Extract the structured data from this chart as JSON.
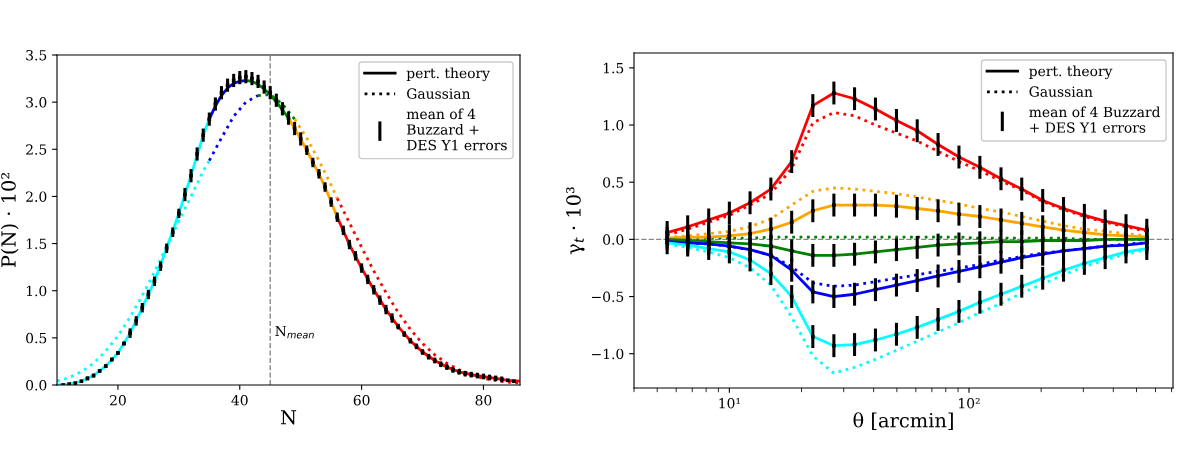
{
  "chart_data": [
    {
      "type": "line",
      "xlabel": "N",
      "ylabel": "P(N) · 10²",
      "xlim": [
        10,
        86
      ],
      "ylim": [
        0,
        3.5
      ],
      "xticks": [
        20,
        40,
        60,
        80
      ],
      "yticks": [
        {
          "value": 0,
          "label": "0.0"
        },
        {
          "value": 0.5,
          "label": "0.5"
        },
        {
          "value": 1,
          "label": "1.0"
        },
        {
          "value": 1.5,
          "label": "1.5"
        },
        {
          "value": 2,
          "label": "2.0"
        },
        {
          "value": 2.5,
          "label": "2.5"
        },
        {
          "value": 3,
          "label": "3.0"
        },
        {
          "value": 3.5,
          "label": "3.5"
        }
      ],
      "grid": false,
      "legend": "top right",
      "ref_lines": [
        {
          "axis": "x",
          "value": 45,
          "label": "N$_{mean}$",
          "color": "#888888",
          "line_style": "dashed"
        }
      ],
      "series": [
        {
          "name": "pert. theory",
          "color": "#000000",
          "line_style": "solid"
        },
        {
          "name": "Gaussian",
          "color": "#000000",
          "line_style": "dotted"
        },
        {
          "color": "#00ffff",
          "line_style": "dotted",
          "x": [
            10,
            12,
            14,
            16,
            18,
            20,
            22,
            24,
            26,
            28,
            30,
            32,
            34,
            35
          ],
          "values": [
            0.04,
            0.08,
            0.14,
            0.23,
            0.36,
            0.52,
            0.72,
            0.95,
            1.2,
            1.47,
            1.74,
            2.0,
            2.27,
            2.38
          ]
        },
        {
          "color": "#0000ff",
          "line_style": "dotted",
          "x": [
            35,
            37,
            39,
            41,
            43
          ],
          "values": [
            2.38,
            2.62,
            2.85,
            3.0,
            3.07
          ]
        },
        {
          "color": "#008000",
          "line_style": "dotted",
          "x": [
            43,
            45,
            47,
            49
          ],
          "values": [
            3.07,
            3.08,
            2.98,
            2.82
          ]
        },
        {
          "color": "#ffa500",
          "line_style": "dotted",
          "x": [
            49,
            51,
            53,
            55,
            56
          ],
          "values": [
            2.82,
            2.62,
            2.38,
            2.12,
            1.98
          ]
        },
        {
          "color": "#ff0000",
          "line_style": "dotted",
          "x": [
            56,
            58,
            60,
            62,
            64,
            66,
            68,
            70,
            72,
            74,
            76,
            78,
            80,
            82,
            84,
            86
          ],
          "values": [
            1.98,
            1.72,
            1.46,
            1.21,
            0.98,
            0.77,
            0.59,
            0.44,
            0.32,
            0.23,
            0.16,
            0.11,
            0.07,
            0.05,
            0.03,
            0.02
          ]
        },
        {
          "color": "#00ffff",
          "line_style": "solid",
          "x": [
            10,
            12,
            14,
            16,
            18,
            20,
            22,
            24,
            26,
            28,
            30,
            32,
            34,
            35
          ],
          "values": [
            0.0,
            0.01,
            0.04,
            0.1,
            0.2,
            0.34,
            0.55,
            0.82,
            1.1,
            1.45,
            1.82,
            2.22,
            2.65,
            2.82
          ]
        },
        {
          "color": "#0000ff",
          "line_style": "solid",
          "x": [
            35,
            36,
            37,
            38,
            39,
            40,
            41
          ],
          "values": [
            2.82,
            2.96,
            3.07,
            3.15,
            3.2,
            3.22,
            3.23
          ]
        },
        {
          "color": "#008000",
          "line_style": "solid",
          "x": [
            41,
            42,
            43,
            44,
            45,
            46,
            47,
            48
          ],
          "values": [
            3.23,
            3.22,
            3.19,
            3.14,
            3.08,
            3.0,
            2.92,
            2.83
          ]
        },
        {
          "color": "#ffa500",
          "line_style": "solid",
          "x": [
            48,
            49,
            50,
            51,
            52,
            53,
            54,
            55,
            56
          ],
          "values": [
            2.83,
            2.72,
            2.61,
            2.49,
            2.36,
            2.24,
            2.1,
            1.94,
            1.78
          ]
        },
        {
          "color": "#ff0000",
          "line_style": "solid",
          "x": [
            56,
            58,
            60,
            62,
            64,
            66,
            68,
            70,
            72,
            74,
            76,
            78,
            80,
            82,
            84,
            86
          ],
          "values": [
            1.78,
            1.49,
            1.24,
            1.01,
            0.8,
            0.62,
            0.47,
            0.35,
            0.26,
            0.19,
            0.14,
            0.11,
            0.09,
            0.07,
            0.05,
            0.04
          ]
        },
        {
          "type": "scatter",
          "name": "mean of 4\nBuzzard +\nDES Y1 errors",
          "color": "#000000",
          "marker": "square",
          "x": [
            11,
            12,
            13,
            14,
            15,
            16,
            17,
            18,
            19,
            20,
            21,
            22,
            23,
            24,
            25,
            26,
            27,
            28,
            29,
            30,
            31,
            32,
            33,
            34,
            35,
            36,
            37,
            38,
            39,
            40,
            41,
            42,
            43,
            44,
            45,
            46,
            47,
            48,
            49,
            50,
            51,
            52,
            53,
            54,
            55,
            56,
            57,
            58,
            59,
            60,
            61,
            62,
            63,
            64,
            65,
            66,
            67,
            68,
            69,
            70,
            71,
            72,
            73,
            74,
            75,
            76,
            77,
            78,
            79,
            80,
            81,
            82,
            83,
            84,
            85
          ],
          "values": [
            0.0,
            0.01,
            0.02,
            0.04,
            0.07,
            0.1,
            0.15,
            0.2,
            0.27,
            0.34,
            0.44,
            0.55,
            0.68,
            0.82,
            0.96,
            1.1,
            1.26,
            1.45,
            1.62,
            1.82,
            2.02,
            2.22,
            2.45,
            2.65,
            2.82,
            2.98,
            3.1,
            3.18,
            3.23,
            3.26,
            3.27,
            3.25,
            3.22,
            3.16,
            3.1,
            3.02,
            2.93,
            2.83,
            2.72,
            2.61,
            2.49,
            2.36,
            2.24,
            2.1,
            1.94,
            1.78,
            1.64,
            1.49,
            1.37,
            1.24,
            1.12,
            1.01,
            0.9,
            0.8,
            0.71,
            0.62,
            0.54,
            0.47,
            0.41,
            0.35,
            0.3,
            0.26,
            0.22,
            0.19,
            0.16,
            0.14,
            0.12,
            0.11,
            0.1,
            0.09,
            0.08,
            0.07,
            0.06,
            0.05,
            0.04
          ],
          "errors": [
            null,
            null,
            null,
            null,
            0.02,
            0.02,
            0.02,
            0.02,
            0.02,
            0.02,
            0.02,
            0.05,
            0.05,
            0.05,
            0.05,
            0.05,
            0.05,
            0.05,
            0.05,
            0.05,
            0.07,
            0.07,
            0.07,
            0.07,
            0.07,
            0.07,
            0.07,
            0.07,
            0.07,
            0.07,
            0.07,
            0.07,
            0.07,
            0.07,
            0.07,
            0.07,
            0.07,
            0.07,
            0.07,
            0.07,
            0.05,
            0.05,
            0.05,
            0.05,
            0.05,
            0.05,
            0.05,
            0.05,
            0.05,
            0.05,
            0.05,
            0.05,
            0.05,
            0.05,
            0.05,
            0.03,
            0.03,
            0.03,
            0.03,
            0.03,
            0.03,
            0.03,
            0.03,
            0.03,
            0.03,
            0.03,
            0.03,
            0.03,
            0.03,
            0.03,
            0.03,
            0.03,
            0.03,
            null,
            null
          ]
        }
      ]
    },
    {
      "type": "line",
      "xlabel": "θ [arcmin]",
      "ylabel": "γ$_{t}$ · 10³",
      "log": "x",
      "xlim": [
        4,
        710
      ],
      "ylim": [
        -1.3,
        1.63
      ],
      "xticks": [
        {
          "value": 10,
          "label": "10¹"
        },
        {
          "value": 100,
          "label": "10²"
        }
      ],
      "yticks": [
        {
          "value": -1,
          "label": "−1.0"
        },
        {
          "value": -0.5,
          "label": "−0.5"
        },
        {
          "value": 0,
          "label": "0.0"
        },
        {
          "value": 0.5,
          "label": "0.5"
        },
        {
          "value": 1,
          "label": "1.0"
        },
        {
          "value": 1.5,
          "label": "1.5"
        }
      ],
      "grid": false,
      "legend": "top right",
      "ref_lines": [
        {
          "axis": "y",
          "value": 0,
          "label": null,
          "color": "#888888",
          "line_style": "dashed"
        }
      ],
      "x": [
        5.5,
        6.7,
        8.2,
        10,
        12.2,
        14.9,
        18.2,
        22.3,
        27.3,
        33.3,
        40.7,
        49.8,
        60.8,
        74.3,
        90.8,
        111,
        136,
        166,
        203,
        248,
        303,
        370,
        452,
        552
      ],
      "series": [
        {
          "name": "pert. theory",
          "color": "#000000",
          "line_style": "solid",
          "values": [
            null,
            null,
            null,
            null,
            null,
            null,
            null,
            null,
            null,
            null,
            null,
            null,
            null,
            null,
            null,
            null,
            null,
            null,
            null,
            null,
            null,
            null,
            null,
            null
          ]
        },
        {
          "name": "Gaussian",
          "color": "#000000",
          "line_style": "dotted",
          "values": [
            null,
            null,
            null,
            null,
            null,
            null,
            null,
            null,
            null,
            null,
            null,
            null,
            null,
            null,
            null,
            null,
            null,
            null,
            null,
            null,
            null,
            null,
            null,
            null
          ]
        },
        {
          "color": "#ff0000",
          "line_style": "dotted",
          "values": [
            0.04,
            0.09,
            0.15,
            0.21,
            0.3,
            0.4,
            0.62,
            1.02,
            1.11,
            1.08,
            1.0,
            0.93,
            0.86,
            0.77,
            0.68,
            0.6,
            0.51,
            0.43,
            0.33,
            0.26,
            0.2,
            0.15,
            0.11,
            0.07
          ]
        },
        {
          "color": "#ffa500",
          "line_style": "dotted",
          "values": [
            0.02,
            0.03,
            0.05,
            0.07,
            0.11,
            0.18,
            0.3,
            0.42,
            0.45,
            0.44,
            0.42,
            0.4,
            0.37,
            0.34,
            0.31,
            0.27,
            0.24,
            0.2,
            0.16,
            0.12,
            0.09,
            0.07,
            0.05,
            0.03
          ]
        },
        {
          "color": "#008000",
          "line_style": "dotted",
          "values": [
            0,
            0,
            0.01,
            0.01,
            0.01,
            0.02,
            0.02,
            0.02,
            0.02,
            0.02,
            0.02,
            0.02,
            0.02,
            0.02,
            0.02,
            0.01,
            0.01,
            0.01,
            0.01,
            0.01,
            0,
            0,
            0,
            0
          ]
        },
        {
          "color": "#0000ff",
          "line_style": "dotted",
          "values": [
            -0.02,
            -0.03,
            -0.04,
            -0.06,
            -0.09,
            -0.14,
            -0.24,
            -0.38,
            -0.41,
            -0.4,
            -0.37,
            -0.34,
            -0.31,
            -0.28,
            -0.25,
            -0.22,
            -0.18,
            -0.15,
            -0.12,
            -0.1,
            -0.08,
            -0.06,
            -0.04,
            -0.03
          ]
        },
        {
          "color": "#00ffff",
          "line_style": "dotted",
          "values": [
            -0.04,
            -0.07,
            -0.11,
            -0.16,
            -0.25,
            -0.4,
            -0.68,
            -1.02,
            -1.17,
            -1.12,
            -1.05,
            -0.97,
            -0.89,
            -0.81,
            -0.73,
            -0.64,
            -0.56,
            -0.47,
            -0.39,
            -0.31,
            -0.24,
            -0.18,
            -0.13,
            -0.09
          ]
        },
        {
          "color": "#ff0000",
          "line_style": "solid",
          "values": [
            0.06,
            0.11,
            0.17,
            0.23,
            0.32,
            0.44,
            0.68,
            1.17,
            1.28,
            1.23,
            1.14,
            1.04,
            0.95,
            0.83,
            0.72,
            0.63,
            0.53,
            0.44,
            0.34,
            0.27,
            0.21,
            0.16,
            0.12,
            0.08
          ]
        },
        {
          "color": "#ffa500",
          "line_style": "solid",
          "values": [
            0.01,
            0.02,
            0.02,
            0.03,
            0.05,
            0.09,
            0.15,
            0.25,
            0.3,
            0.3,
            0.3,
            0.29,
            0.27,
            0.25,
            0.22,
            0.2,
            0.17,
            0.14,
            0.11,
            0.08,
            0.06,
            0.04,
            0.03,
            0.02
          ]
        },
        {
          "color": "#008000",
          "line_style": "solid",
          "values": [
            0,
            -0.01,
            -0.02,
            -0.03,
            -0.04,
            -0.06,
            -0.1,
            -0.14,
            -0.14,
            -0.13,
            -0.11,
            -0.09,
            -0.07,
            -0.05,
            -0.04,
            -0.03,
            -0.02,
            -0.02,
            -0.01,
            -0.01,
            -0.01,
            0,
            0,
            0
          ]
        },
        {
          "color": "#0000ff",
          "line_style": "solid",
          "values": [
            -0.02,
            -0.03,
            -0.04,
            -0.06,
            -0.09,
            -0.14,
            -0.27,
            -0.46,
            -0.5,
            -0.48,
            -0.44,
            -0.4,
            -0.36,
            -0.32,
            -0.28,
            -0.24,
            -0.2,
            -0.16,
            -0.13,
            -0.1,
            -0.08,
            -0.06,
            -0.05,
            -0.03
          ]
        },
        {
          "color": "#00ffff",
          "line_style": "solid",
          "values": [
            -0.03,
            -0.05,
            -0.08,
            -0.11,
            -0.18,
            -0.3,
            -0.5,
            -0.85,
            -0.93,
            -0.92,
            -0.88,
            -0.83,
            -0.77,
            -0.7,
            -0.63,
            -0.55,
            -0.48,
            -0.41,
            -0.34,
            -0.27,
            -0.21,
            -0.16,
            -0.11,
            -0.08
          ]
        },
        {
          "type": "scatter",
          "name": "mean of 4 Buzzard\n+ DES Y1 errors",
          "color": "#000000",
          "marker": "square",
          "errors": [
            0.1,
            0.1,
            0.1,
            0.1,
            0.1,
            0.1,
            0.1,
            0.1,
            0.1,
            0.1,
            0.1,
            0.1,
            0.1,
            0.1,
            0.1,
            0.1,
            0.1,
            0.1,
            0.1,
            0.1,
            0.1,
            0.1,
            0.1,
            0.1
          ],
          "values": [
            0.06,
            0.11,
            0.17,
            0.23,
            0.32,
            0.44,
            0.68,
            1.17,
            1.28,
            1.23,
            1.14,
            1.04,
            0.95,
            0.83,
            0.72,
            0.63,
            0.53,
            0.44,
            0.34,
            0.27,
            0.21,
            0.16,
            0.12,
            0.08
          ]
        },
        {
          "type": "scatter",
          "color": "#000000",
          "marker": "square",
          "errors": [
            0.1,
            0.1,
            0.1,
            0.1,
            0.1,
            0.1,
            0.1,
            0.1,
            0.1,
            0.1,
            0.1,
            0.1,
            0.1,
            0.1,
            0.1,
            0.1,
            0.1,
            0.1,
            0.1,
            0.1,
            0.1,
            0.1,
            0.1,
            0.1
          ],
          "values": [
            0.01,
            0.02,
            0.02,
            0.03,
            0.05,
            0.09,
            0.15,
            0.25,
            0.3,
            0.3,
            0.3,
            0.29,
            0.27,
            0.25,
            0.22,
            0.2,
            0.17,
            0.14,
            0.11,
            0.08,
            0.06,
            0.04,
            0.03,
            0.02
          ]
        },
        {
          "type": "scatter",
          "color": "#000000",
          "marker": "square",
          "errors": [
            null,
            0.1,
            0.1,
            0.1,
            0.1,
            0.1,
            0.1,
            0.1,
            0.1,
            0.1,
            0.1,
            0.1,
            0.1,
            0.1,
            0.1,
            0.1,
            0.1,
            0.1,
            0.1,
            0.1,
            0.1,
            0.1,
            0.1,
            0.1
          ],
          "values": [
            null,
            -0.01,
            -0.02,
            -0.03,
            -0.04,
            -0.06,
            -0.1,
            -0.14,
            -0.14,
            -0.13,
            -0.11,
            -0.09,
            -0.07,
            -0.05,
            -0.04,
            -0.03,
            -0.02,
            -0.02,
            -0.01,
            -0.01,
            -0.01,
            0,
            0,
            0
          ]
        },
        {
          "type": "scatter",
          "color": "#000000",
          "marker": "square",
          "errors": [
            null,
            0.1,
            0.1,
            0.1,
            0.1,
            0.1,
            0.1,
            0.1,
            0.1,
            0.1,
            0.1,
            0.1,
            0.1,
            0.1,
            0.1,
            0.1,
            0.1,
            0.1,
            0.1,
            0.1,
            0.1,
            0.1,
            0.1,
            0.1
          ],
          "values": [
            null,
            -0.03,
            -0.04,
            -0.06,
            -0.09,
            -0.14,
            -0.27,
            -0.46,
            -0.5,
            -0.48,
            -0.44,
            -0.4,
            -0.36,
            -0.32,
            -0.28,
            -0.24,
            -0.2,
            -0.16,
            -0.13,
            -0.1,
            -0.08,
            -0.06,
            -0.05,
            -0.03
          ]
        },
        {
          "type": "scatter",
          "color": "#000000",
          "marker": "square",
          "errors": [
            0.1,
            0.1,
            0.1,
            0.1,
            0.1,
            0.1,
            0.1,
            0.1,
            0.1,
            0.1,
            0.1,
            0.1,
            0.1,
            0.1,
            0.1,
            0.1,
            0.1,
            0.1,
            0.1,
            0.1,
            0.1,
            0.1,
            0.1,
            0.1
          ],
          "values": [
            -0.03,
            -0.05,
            -0.08,
            -0.11,
            -0.18,
            -0.3,
            -0.5,
            -0.85,
            -0.93,
            -0.92,
            -0.88,
            -0.83,
            -0.77,
            -0.7,
            -0.63,
            -0.55,
            -0.48,
            -0.41,
            -0.34,
            -0.27,
            -0.21,
            -0.16,
            -0.11,
            -0.08
          ]
        }
      ]
    }
  ]
}
